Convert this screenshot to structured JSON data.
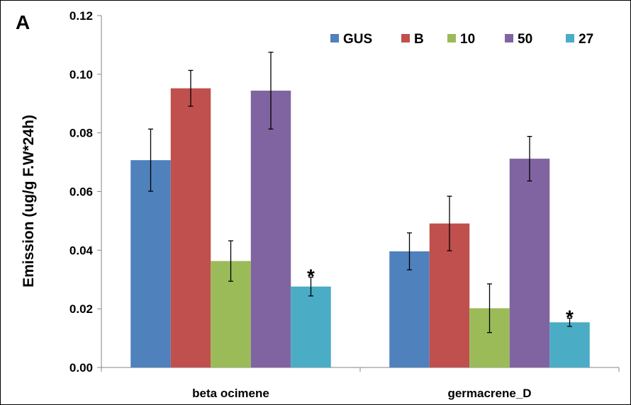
{
  "chart_data": {
    "type": "bar",
    "panel_label": "A",
    "ylabel": "Emission (ug/g F.W*24h)",
    "xlabel": "",
    "ylim": [
      0,
      0.12
    ],
    "yticks": [
      "0.00",
      "0.02",
      "0.04",
      "0.06",
      "0.08",
      "0.10",
      "0.12"
    ],
    "grid": false,
    "legend_position": "top-right",
    "categories": [
      "beta ocimene",
      "germacrene_D"
    ],
    "series": [
      {
        "name": "GUS",
        "color": "#4F81BD",
        "values": [
          0.0707,
          0.0396
        ],
        "errors": [
          0.0106,
          0.0063
        ]
      },
      {
        "name": "B",
        "color": "#C0504D",
        "values": [
          0.0952,
          0.0491
        ],
        "errors": [
          0.0061,
          0.0093
        ]
      },
      {
        "name": "10",
        "color": "#9BBB59",
        "values": [
          0.0363,
          0.0202
        ],
        "errors": [
          0.0069,
          0.0083
        ]
      },
      {
        "name": "50",
        "color": "#8064A2",
        "values": [
          0.0944,
          0.0712
        ],
        "errors": [
          0.0131,
          0.0076
        ]
      },
      {
        "name": "27",
        "color": "#4BACC6",
        "values": [
          0.0276,
          0.0154
        ],
        "errors": [
          0.0032,
          0.0014
        ]
      }
    ],
    "annotations": [
      {
        "text": "*",
        "series": "27",
        "category": "beta ocimene"
      },
      {
        "text": "*",
        "series": "27",
        "category": "germacrene_D"
      }
    ]
  }
}
